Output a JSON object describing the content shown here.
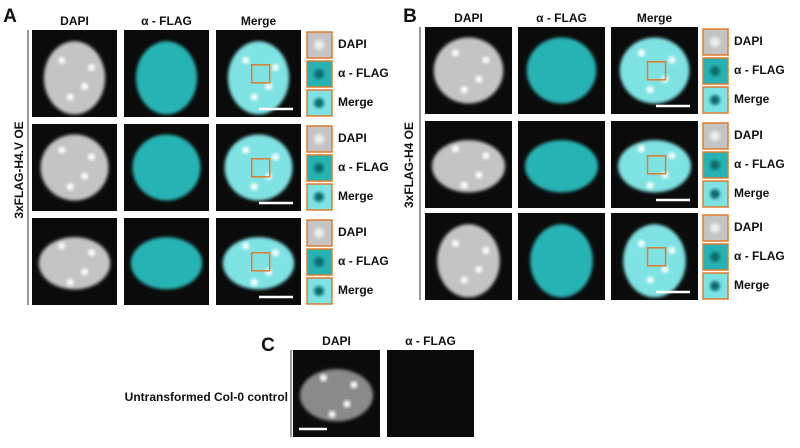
{
  "panels": [
    {
      "label": "A",
      "columns": [
        "DAPI",
        "α - FLAG",
        "Merge"
      ],
      "row_label": "3xFLAG-H4.V OE",
      "rows": [
        {
          "insets": [
            "DAPI",
            "α - FLAG",
            "Merge"
          ]
        },
        {
          "insets": [
            "DAPI",
            "α - FLAG",
            "Merge"
          ]
        },
        {
          "insets": [
            "DAPI",
            "α - FLAG",
            "Merge"
          ]
        }
      ]
    },
    {
      "label": "B",
      "columns": [
        "DAPI",
        "α - FLAG",
        "Merge"
      ],
      "row_label": "3xFLAG-H4 OE",
      "rows": [
        {
          "insets": [
            "DAPI",
            "α - FLAG",
            "Merge"
          ]
        },
        {
          "insets": [
            "DAPI",
            "α - FLAG",
            "Merge"
          ]
        },
        {
          "insets": [
            "DAPI",
            "α - FLAG",
            "Merge"
          ]
        }
      ]
    },
    {
      "label": "C",
      "columns": [
        "DAPI",
        "α - FLAG"
      ],
      "row_label": "Untransformed Col-0 control"
    }
  ]
}
